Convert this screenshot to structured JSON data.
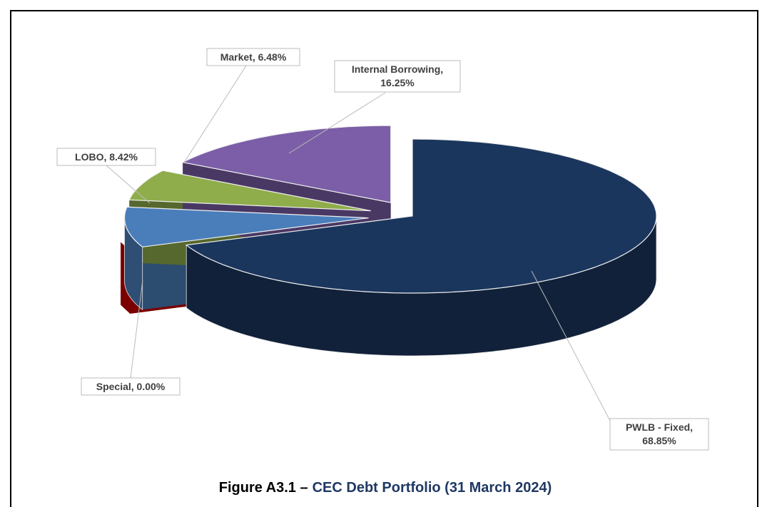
{
  "chart_data": {
    "type": "pie3d",
    "caption_label": "Figure A3.1 –",
    "title": "CEC Debt Portfolio (31 March 2024)",
    "values": [
      68.85,
      0.0,
      8.42,
      6.48,
      16.25
    ],
    "value_labels": [
      "PWLB - Fixed, 68.85%",
      "Special, 0.00%",
      "LOBO, 8.42%",
      "Market, 6.48%",
      "Internal Borrowing, 16.25%"
    ],
    "colors": [
      "#1b365d",
      "#7a0000",
      "#4a7ebb",
      "#8fad4b",
      "#7b5ea7"
    ]
  }
}
